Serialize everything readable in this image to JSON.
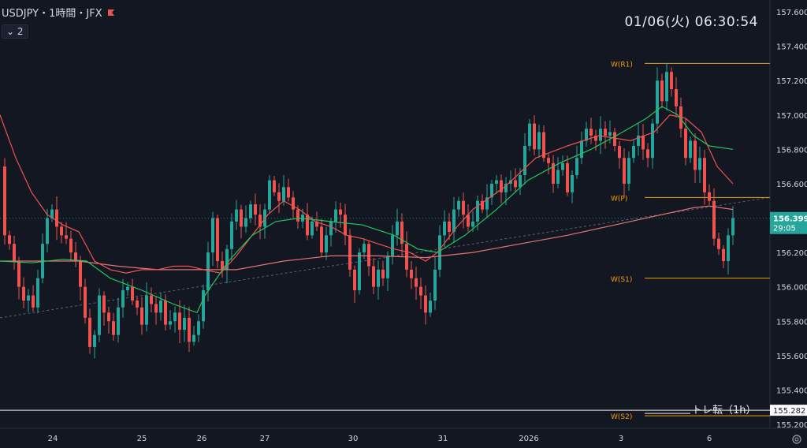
{
  "header": {
    "symbol_label": "USDJPY・1時間・JFX",
    "indicator_count": "2"
  },
  "clock": "01/06(火)  06:30:54",
  "colors": {
    "background": "#131722",
    "up": "#26a69a",
    "down": "#ef5350",
    "ma_fast": "#ef5350",
    "ma_slow": "#22c55e",
    "pivot": "#f59e0b",
    "text": "#d1d4dc"
  },
  "price_labels": {
    "current": "156.399",
    "countdown": "29:05",
    "marker_line": "155.282"
  },
  "annotation": "トレ転（1h）",
  "chart_data": {
    "type": "candlestick",
    "y_range": [
      155.2,
      157.8
    ],
    "y_ticks": [
      "157.600",
      "157.400",
      "157.200",
      "157.000",
      "156.800",
      "156.600",
      "156.400",
      "156.200",
      "156.000",
      "155.800",
      "155.600",
      "155.400",
      "155.200"
    ],
    "x_ticks": [
      "24",
      "25",
      "26",
      "27",
      "30",
      "31",
      "2026",
      "3",
      "6"
    ],
    "pivot_levels": [
      {
        "name": "W(R1)",
        "value": 157.3
      },
      {
        "name": "W(P)",
        "value": 156.52
      },
      {
        "name": "W(S1)",
        "value": 156.05
      },
      {
        "name": "W(S2)",
        "value": 155.25
      }
    ],
    "marker_line": 155.282,
    "current_price": 156.399,
    "close_path": [
      [
        0,
        156.7
      ],
      [
        6,
        156.3
      ],
      [
        12,
        156.25
      ],
      [
        18,
        156.15
      ],
      [
        24,
        156.0
      ],
      [
        30,
        155.92
      ],
      [
        36,
        155.95
      ],
      [
        42,
        155.88
      ],
      [
        48,
        156.05
      ],
      [
        54,
        156.25
      ],
      [
        60,
        156.4
      ],
      [
        66,
        156.45
      ],
      [
        72,
        156.35
      ],
      [
        78,
        156.3
      ],
      [
        84,
        156.28
      ],
      [
        90,
        156.2
      ],
      [
        96,
        156.15
      ],
      [
        102,
        156.0
      ],
      [
        108,
        155.82
      ],
      [
        114,
        155.65
      ],
      [
        120,
        155.72
      ],
      [
        126,
        155.95
      ],
      [
        132,
        155.85
      ],
      [
        138,
        155.8
      ],
      [
        144,
        155.72
      ],
      [
        150,
        155.88
      ],
      [
        156,
        155.98
      ],
      [
        162,
        156.0
      ],
      [
        168,
        155.92
      ],
      [
        174,
        155.88
      ],
      [
        180,
        155.78
      ],
      [
        186,
        155.95
      ],
      [
        192,
        155.9
      ],
      [
        198,
        155.85
      ],
      [
        204,
        155.92
      ],
      [
        210,
        155.78
      ],
      [
        216,
        155.8
      ],
      [
        222,
        155.85
      ],
      [
        228,
        155.75
      ],
      [
        234,
        155.82
      ],
      [
        240,
        155.68
      ],
      [
        246,
        155.72
      ],
      [
        252,
        155.8
      ],
      [
        258,
        155.98
      ],
      [
        264,
        156.2
      ],
      [
        270,
        156.4
      ],
      [
        276,
        156.15
      ],
      [
        282,
        156.1
      ],
      [
        288,
        156.22
      ],
      [
        294,
        156.38
      ],
      [
        300,
        156.45
      ],
      [
        306,
        156.35
      ],
      [
        312,
        156.4
      ],
      [
        318,
        156.48
      ],
      [
        324,
        156.42
      ],
      [
        330,
        156.35
      ],
      [
        336,
        156.45
      ],
      [
        342,
        156.62
      ],
      [
        348,
        156.55
      ],
      [
        354,
        156.5
      ],
      [
        360,
        156.58
      ],
      [
        366,
        156.52
      ],
      [
        372,
        156.45
      ],
      [
        378,
        156.38
      ],
      [
        384,
        156.42
      ],
      [
        390,
        156.3
      ],
      [
        396,
        156.38
      ],
      [
        402,
        156.35
      ],
      [
        408,
        156.2
      ],
      [
        414,
        156.3
      ],
      [
        420,
        156.38
      ],
      [
        426,
        156.45
      ],
      [
        432,
        156.42
      ],
      [
        438,
        156.3
      ],
      [
        444,
        156.1
      ],
      [
        450,
        155.98
      ],
      [
        456,
        156.2
      ],
      [
        462,
        156.25
      ],
      [
        468,
        156.12
      ],
      [
        474,
        156.0
      ],
      [
        480,
        156.1
      ],
      [
        486,
        156.05
      ],
      [
        492,
        156.18
      ],
      [
        498,
        156.3
      ],
      [
        504,
        156.38
      ],
      [
        510,
        156.25
      ],
      [
        516,
        156.1
      ],
      [
        522,
        156.05
      ],
      [
        528,
        156.0
      ],
      [
        534,
        155.95
      ],
      [
        540,
        155.85
      ],
      [
        546,
        155.92
      ],
      [
        552,
        156.1
      ],
      [
        558,
        156.3
      ],
      [
        564,
        156.38
      ],
      [
        570,
        156.32
      ],
      [
        576,
        156.45
      ],
      [
        582,
        156.5
      ],
      [
        588,
        156.42
      ],
      [
        594,
        156.35
      ],
      [
        600,
        156.38
      ],
      [
        606,
        156.5
      ],
      [
        612,
        156.45
      ],
      [
        618,
        156.52
      ],
      [
        624,
        156.6
      ],
      [
        630,
        156.62
      ],
      [
        636,
        156.55
      ],
      [
        642,
        156.6
      ],
      [
        648,
        156.62
      ],
      [
        654,
        156.58
      ],
      [
        660,
        156.65
      ],
      [
        666,
        156.82
      ],
      [
        672,
        156.95
      ],
      [
        678,
        156.8
      ],
      [
        684,
        156.9
      ],
      [
        690,
        156.75
      ],
      [
        696,
        156.72
      ],
      [
        702,
        156.6
      ],
      [
        708,
        156.68
      ],
      [
        714,
        156.72
      ],
      [
        720,
        156.55
      ],
      [
        726,
        156.65
      ],
      [
        732,
        156.75
      ],
      [
        738,
        156.85
      ],
      [
        744,
        156.92
      ],
      [
        750,
        156.88
      ],
      [
        756,
        156.85
      ],
      [
        762,
        156.92
      ],
      [
        768,
        156.88
      ],
      [
        774,
        156.9
      ],
      [
        780,
        156.82
      ],
      [
        786,
        156.75
      ],
      [
        792,
        156.6
      ],
      [
        798,
        156.75
      ],
      [
        804,
        156.82
      ],
      [
        810,
        156.88
      ],
      [
        816,
        156.8
      ],
      [
        822,
        156.75
      ],
      [
        828,
        156.95
      ],
      [
        834,
        157.2
      ],
      [
        840,
        157.08
      ],
      [
        846,
        157.25
      ],
      [
        852,
        157.15
      ],
      [
        858,
        157.05
      ],
      [
        864,
        156.92
      ],
      [
        870,
        156.75
      ],
      [
        876,
        156.85
      ],
      [
        882,
        156.68
      ],
      [
        888,
        156.75
      ],
      [
        894,
        156.55
      ],
      [
        900,
        156.5
      ],
      [
        906,
        156.28
      ],
      [
        912,
        156.22
      ],
      [
        918,
        156.15
      ],
      [
        924,
        156.3
      ],
      [
        930,
        156.4
      ]
    ],
    "ma_fast": [
      [
        0,
        157.0
      ],
      [
        20,
        156.75
      ],
      [
        40,
        156.55
      ],
      [
        60,
        156.42
      ],
      [
        80,
        156.36
      ],
      [
        100,
        156.32
      ],
      [
        120,
        156.15
      ],
      [
        140,
        156.1
      ],
      [
        160,
        156.08
      ],
      [
        180,
        156.1
      ],
      [
        200,
        156.1
      ],
      [
        220,
        156.12
      ],
      [
        240,
        156.12
      ],
      [
        258,
        156.1
      ],
      [
        280,
        156.08
      ],
      [
        300,
        156.18
      ],
      [
        340,
        156.42
      ],
      [
        360,
        156.5
      ],
      [
        380,
        156.45
      ],
      [
        400,
        156.38
      ],
      [
        420,
        156.35
      ],
      [
        440,
        156.3
      ],
      [
        460,
        156.28
      ],
      [
        480,
        156.25
      ],
      [
        500,
        156.22
      ],
      [
        520,
        156.2
      ],
      [
        540,
        156.15
      ],
      [
        555,
        156.2
      ],
      [
        580,
        156.35
      ],
      [
        600,
        156.45
      ],
      [
        640,
        156.58
      ],
      [
        680,
        156.75
      ],
      [
        720,
        156.82
      ],
      [
        760,
        156.88
      ],
      [
        800,
        156.85
      ],
      [
        830,
        156.9
      ],
      [
        850,
        157.0
      ],
      [
        870,
        156.98
      ],
      [
        890,
        156.9
      ],
      [
        910,
        156.7
      ],
      [
        930,
        156.6
      ]
    ],
    "ma_slow": [
      [
        0,
        156.15
      ],
      [
        40,
        156.14
      ],
      [
        80,
        156.16
      ],
      [
        110,
        156.15
      ],
      [
        140,
        156.05
      ],
      [
        180,
        155.98
      ],
      [
        220,
        155.9
      ],
      [
        250,
        155.85
      ],
      [
        260,
        155.95
      ],
      [
        290,
        156.15
      ],
      [
        320,
        156.3
      ],
      [
        350,
        156.38
      ],
      [
        380,
        156.4
      ],
      [
        420,
        156.38
      ],
      [
        460,
        156.36
      ],
      [
        500,
        156.3
      ],
      [
        530,
        156.22
      ],
      [
        555,
        156.2
      ],
      [
        590,
        156.3
      ],
      [
        630,
        156.45
      ],
      [
        670,
        156.62
      ],
      [
        710,
        156.72
      ],
      [
        750,
        156.8
      ],
      [
        790,
        156.9
      ],
      [
        820,
        156.98
      ],
      [
        840,
        157.05
      ],
      [
        860,
        157.0
      ],
      [
        880,
        156.88
      ],
      [
        900,
        156.82
      ],
      [
        930,
        156.8
      ]
    ],
    "ma_long": [
      [
        0,
        156.15
      ],
      [
        100,
        156.15
      ],
      [
        150,
        156.12
      ],
      [
        200,
        156.1
      ],
      [
        260,
        156.1
      ],
      [
        300,
        156.1
      ],
      [
        360,
        156.15
      ],
      [
        420,
        156.18
      ],
      [
        480,
        156.18
      ],
      [
        540,
        156.17
      ],
      [
        600,
        156.2
      ],
      [
        660,
        156.25
      ],
      [
        720,
        156.3
      ],
      [
        780,
        156.36
      ],
      [
        840,
        156.42
      ],
      [
        880,
        156.46
      ],
      [
        900,
        156.47
      ],
      [
        930,
        156.45
      ]
    ],
    "trendline": [
      [
        0,
        155.82
      ],
      [
        977,
        156.52
      ]
    ]
  }
}
